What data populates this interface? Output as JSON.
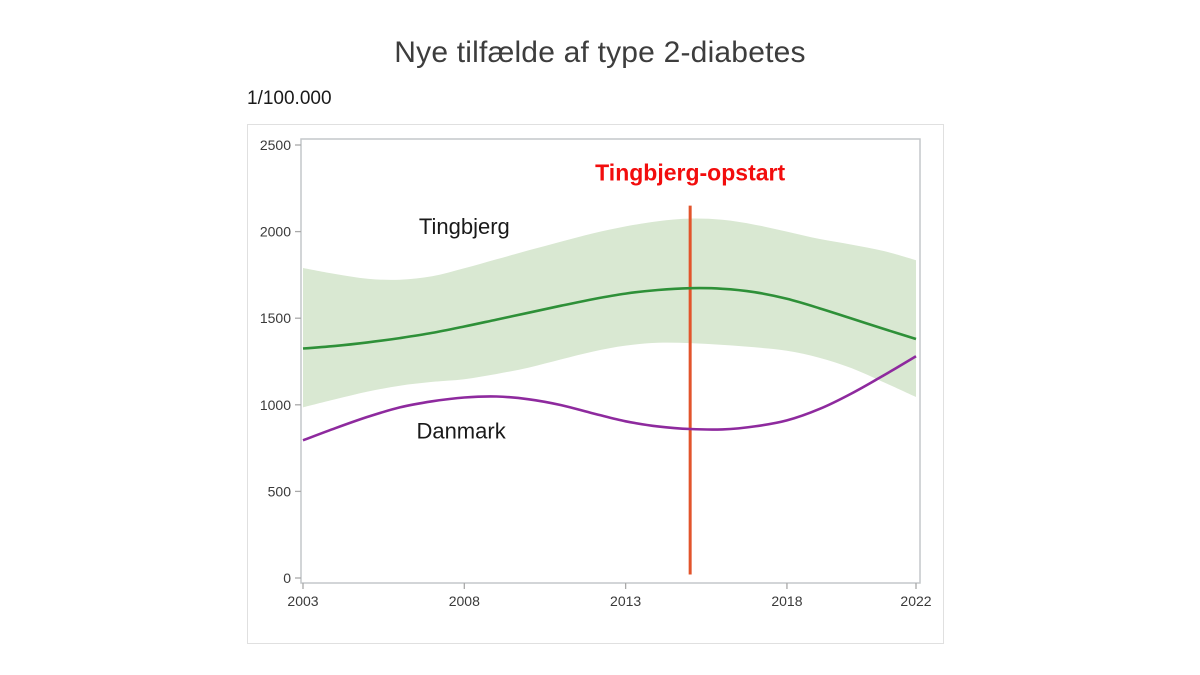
{
  "header": {
    "title": "Nye tilfælde af type 2-diabetes",
    "unit_label": "1/100.000"
  },
  "chart_data": {
    "type": "line",
    "title": "Nye tilfælde af type 2-diabetes",
    "ylabel": "1/100.000",
    "xlabel": "",
    "grid": false,
    "xlim": [
      2003,
      2022
    ],
    "ylim": [
      0,
      2500
    ],
    "x_ticks": [
      2003,
      2008,
      2013,
      2018,
      2022
    ],
    "y_ticks": [
      0,
      500,
      1000,
      1500,
      2000,
      2500
    ],
    "x": [
      2003,
      2004,
      2005,
      2006,
      2007,
      2008,
      2009,
      2010,
      2011,
      2012,
      2013,
      2014,
      2015,
      2016,
      2017,
      2018,
      2019,
      2020,
      2021,
      2022
    ],
    "series": [
      {
        "name": "Tingbjerg",
        "color": "#2e9038",
        "values": [
          1325,
          1340,
          1360,
          1385,
          1415,
          1452,
          1492,
          1532,
          1572,
          1610,
          1642,
          1663,
          1673,
          1670,
          1650,
          1612,
          1558,
          1498,
          1438,
          1380
        ],
        "band": {
          "color": "#d9e8d2",
          "upper": [
            1790,
            1755,
            1728,
            1722,
            1742,
            1788,
            1840,
            1892,
            1942,
            1990,
            2030,
            2060,
            2075,
            2068,
            2040,
            2000,
            1958,
            1925,
            1888,
            1835
          ],
          "lower": [
            985,
            1032,
            1076,
            1110,
            1132,
            1148,
            1178,
            1215,
            1262,
            1308,
            1342,
            1358,
            1356,
            1346,
            1332,
            1312,
            1272,
            1212,
            1130,
            1045
          ]
        }
      },
      {
        "name": "Danmark",
        "color": "#8e2a9e",
        "values": [
          795,
          865,
          930,
          985,
          1020,
          1042,
          1048,
          1032,
          998,
          950,
          905,
          875,
          860,
          858,
          875,
          910,
          975,
          1065,
          1170,
          1280
        ]
      }
    ],
    "series_labels": [
      {
        "text": "Tingbjerg",
        "x": 2008,
        "y": 2020,
        "color": "#1a1a1a"
      },
      {
        "text": "Danmark",
        "x": 2007.9,
        "y": 840,
        "color": "#1a1a1a"
      }
    ],
    "annotation": {
      "vline": {
        "x": 2015,
        "y_bottom": 20,
        "y_top": 2150,
        "color": "#e2542b"
      },
      "label": {
        "text": "Tingbjerg-opstart",
        "x": 2015,
        "y": 2330,
        "color": "#f20d0d"
      }
    },
    "axis_colors": {
      "frame": "#c4c7ca",
      "tick": "#a9a9a9",
      "tick_label": "#3a3a3a"
    }
  }
}
